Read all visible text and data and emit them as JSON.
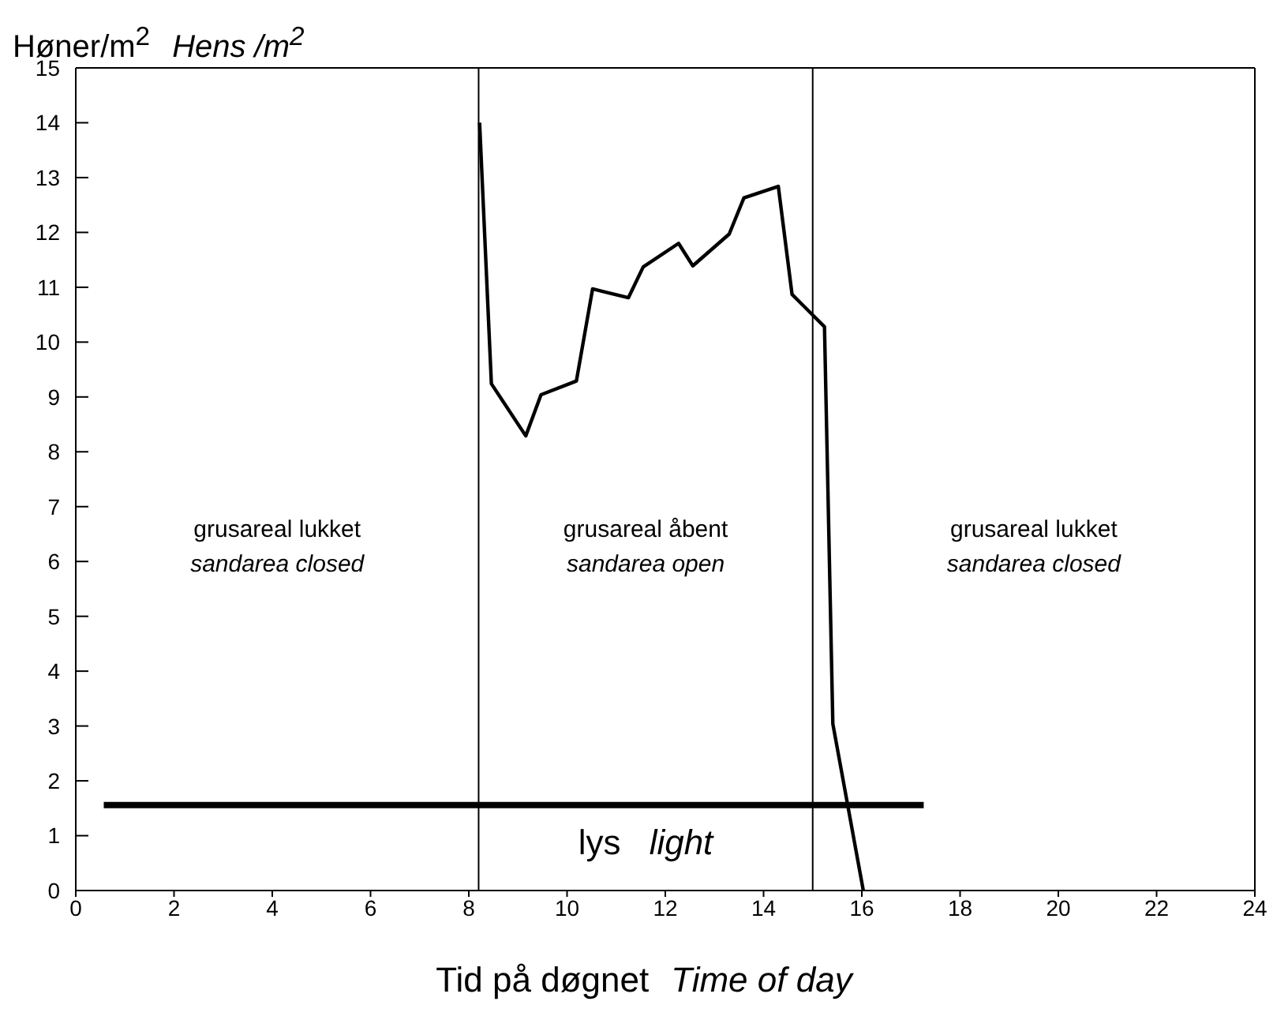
{
  "chart_data": {
    "type": "line",
    "xlabel": "Tid på døgnet  Time of day",
    "ylabel": "Høner/m$^{2}$  Hens /m$^{2}$",
    "series": [
      {
        "color": "#000000",
        "x": [
          8.22,
          8.46,
          9.16,
          9.47,
          10.19,
          10.52,
          11.25,
          11.55,
          12.27,
          12.56,
          13.3,
          13.6,
          14.3,
          14.58,
          15.24,
          15.41,
          16.03
        ],
        "values": [
          14.0,
          9.24,
          8.29,
          9.04,
          9.29,
          10.97,
          10.81,
          11.37,
          11.8,
          11.39,
          11.97,
          12.63,
          12.84,
          10.87,
          10.28,
          3.04,
          0
        ]
      },
      {
        "color": "#000000",
        "x": [
          0.57,
          17.26
        ],
        "values": [
          1.56,
          1.56
        ]
      }
    ],
    "xlim": [
      0,
      24
    ],
    "xticks": [
      0,
      2,
      4,
      6,
      8,
      10,
      12,
      14,
      16,
      18,
      20,
      22,
      24
    ],
    "ylim": [
      0,
      15
    ],
    "yticks": [
      0,
      1,
      2,
      3,
      4,
      5,
      6,
      7,
      8,
      9,
      10,
      11,
      12,
      13,
      14,
      15
    ],
    "legend": false,
    "marker": "none",
    "line_style": "solid",
    "ref_lines": [
      {
        "axis": "x",
        "value": 8.2,
        "color": "#000000"
      },
      {
        "axis": "x",
        "value": 15,
        "color": "#000000"
      }
    ],
    "annotations": [
      "grusareal lukket  sandarea closed",
      "grusareal åbent  sandarea open",
      "grusareal lukket  sandarea closed",
      "lys  light"
    ]
  }
}
